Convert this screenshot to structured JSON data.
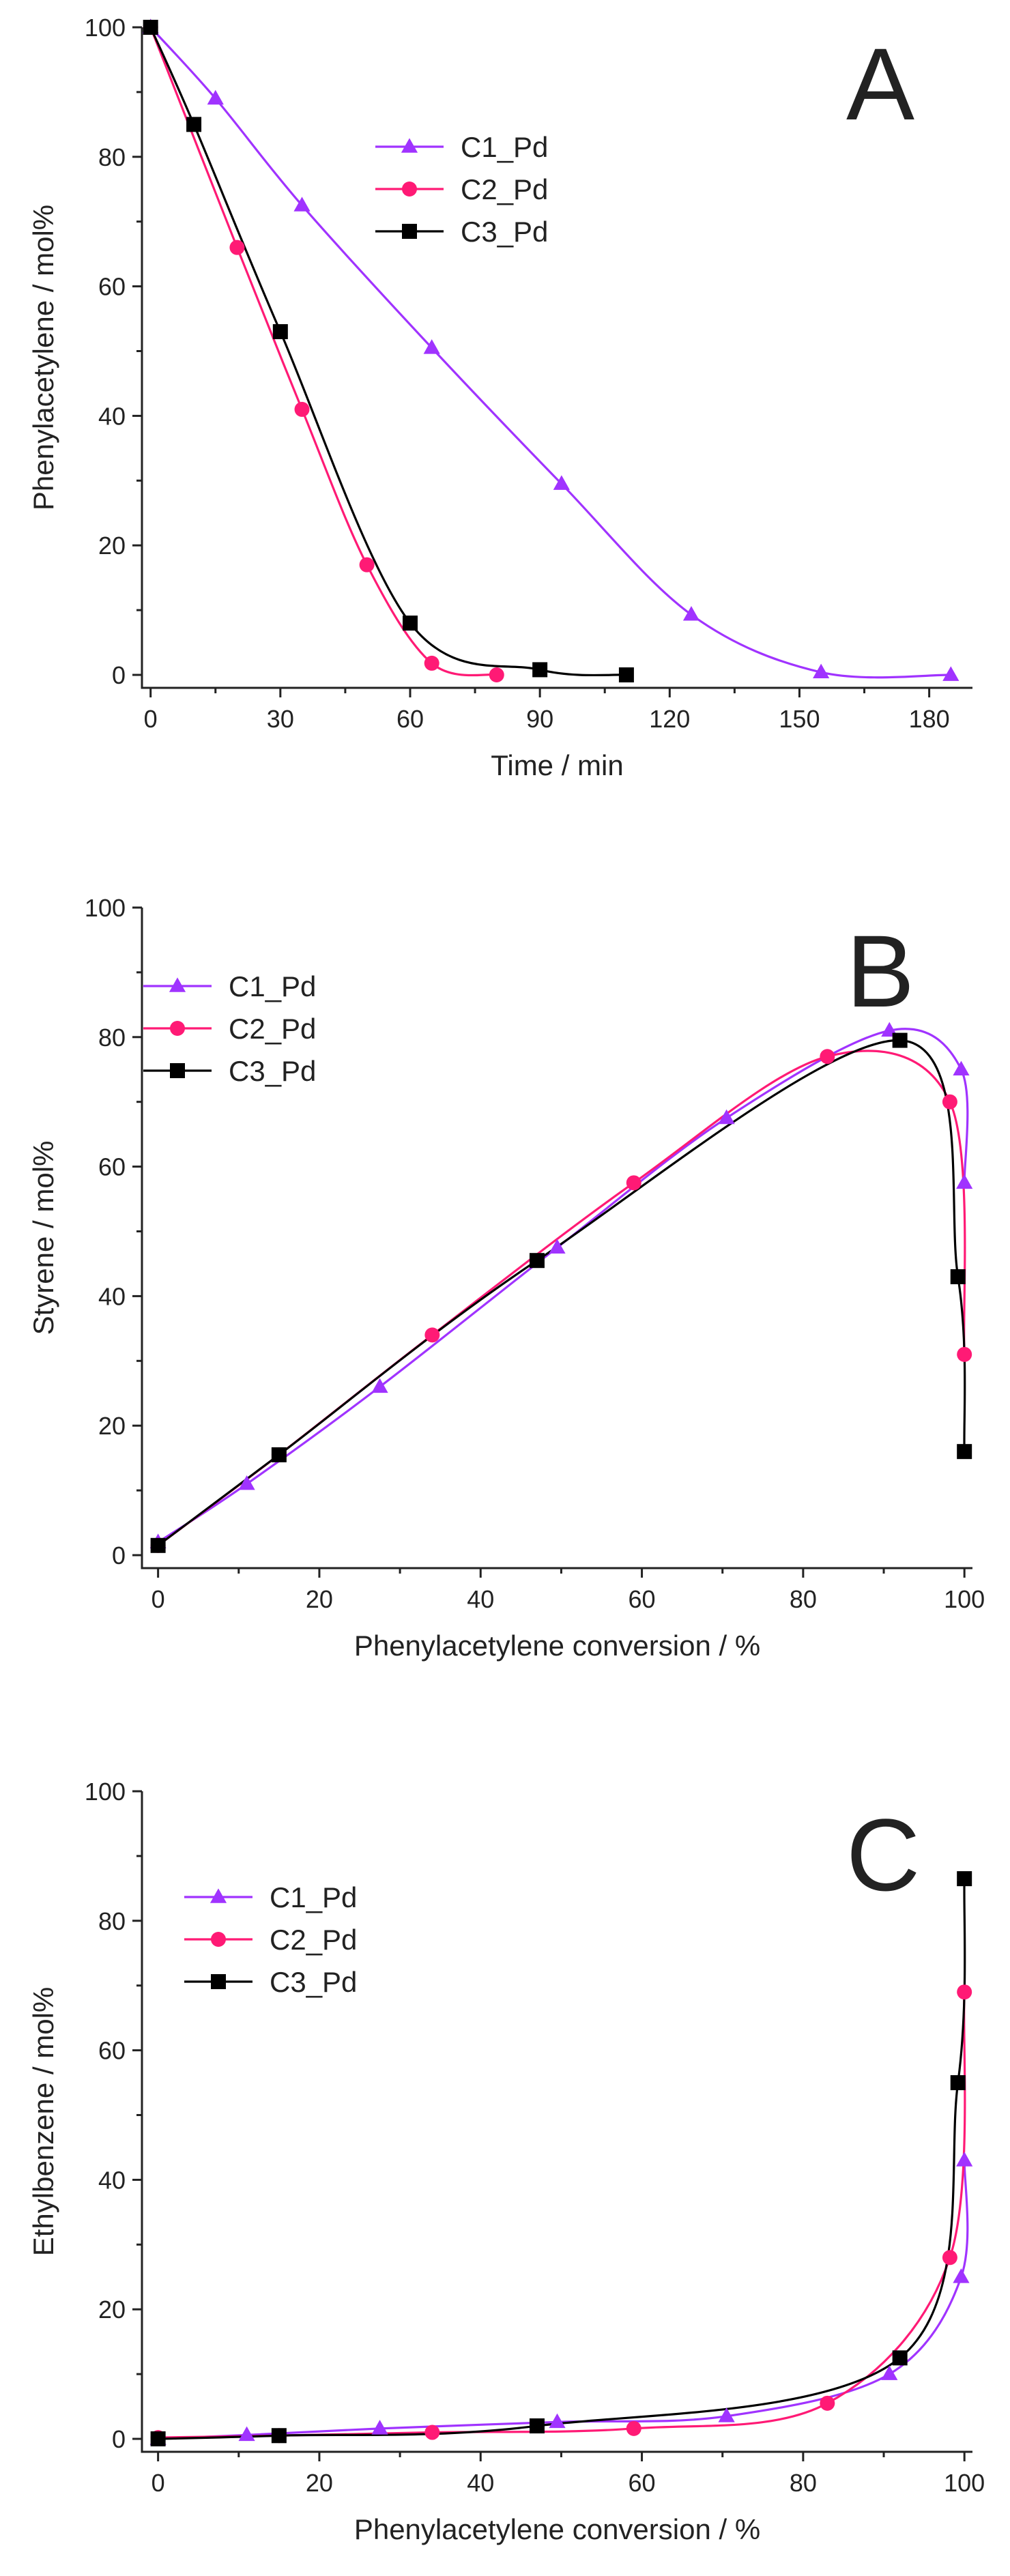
{
  "figure": {
    "panels": [
      "A",
      "B",
      "C"
    ]
  },
  "chart_data": [
    {
      "panel": "A",
      "type": "line",
      "xlabel": "Time / min",
      "ylabel": "Phenylacetylene / mol%",
      "xlim": [
        -2,
        190
      ],
      "ylim": [
        -2,
        100
      ],
      "xticks": [
        0,
        30,
        60,
        90,
        120,
        150,
        180
      ],
      "yticks": [
        0,
        20,
        40,
        60,
        80,
        100
      ],
      "legend_position": "upper-middle",
      "series": [
        {
          "name": "C1_Pd",
          "color": "#a033ff",
          "marker": "triangle",
          "x": [
            0,
            15,
            35,
            65,
            95,
            125,
            155,
            185
          ],
          "y": [
            100,
            89,
            72.5,
            50.5,
            29.5,
            9.3,
            0.4,
            0
          ]
        },
        {
          "name": "C2_Pd",
          "color": "#ff1a75",
          "marker": "circle",
          "x": [
            0,
            20,
            35,
            50,
            65,
            80
          ],
          "y": [
            100,
            66,
            41,
            17,
            1.8,
            0
          ]
        },
        {
          "name": "C3_Pd",
          "color": "#000000",
          "marker": "square",
          "x": [
            0,
            10,
            30,
            60,
            90,
            110
          ],
          "y": [
            100,
            85,
            53,
            8,
            0.8,
            0
          ]
        }
      ]
    },
    {
      "panel": "B",
      "type": "line",
      "xlabel": "Phenylacetylene conversion / %",
      "ylabel": "Styrene / mol%",
      "xlim": [
        -2,
        101
      ],
      "ylim": [
        -2,
        100
      ],
      "xticks": [
        0,
        20,
        40,
        60,
        80,
        100
      ],
      "yticks": [
        0,
        20,
        40,
        60,
        80,
        100
      ],
      "legend_position": "upper-left",
      "series": [
        {
          "name": "C1_Pd",
          "color": "#a033ff",
          "marker": "triangle",
          "x": [
            0,
            11,
            27.5,
            49.5,
            70.5,
            90.7,
            99.6,
            100
          ],
          "y": [
            2,
            11,
            26,
            47.5,
            67.5,
            81,
            75,
            57.5
          ]
        },
        {
          "name": "C2_Pd",
          "color": "#ff1a75",
          "marker": "circle",
          "x": [
            0,
            15,
            34,
            59,
            83,
            98.2,
            100
          ],
          "y": [
            1.5,
            15.5,
            34,
            57.5,
            77,
            70,
            31
          ]
        },
        {
          "name": "C3_Pd",
          "color": "#000000",
          "marker": "square",
          "x": [
            0,
            15,
            47,
            92,
            99.2,
            100
          ],
          "y": [
            1.5,
            15.5,
            45.5,
            79.5,
            43,
            16
          ]
        }
      ]
    },
    {
      "panel": "C",
      "type": "line",
      "xlabel": "Phenylacetylene conversion / %",
      "ylabel": "Ethylbenzene / mol%",
      "xlim": [
        -2,
        101
      ],
      "ylim": [
        -2,
        100
      ],
      "xticks": [
        0,
        20,
        40,
        60,
        80,
        100
      ],
      "yticks": [
        0,
        20,
        40,
        60,
        80,
        100
      ],
      "legend_position": "upper-left",
      "series": [
        {
          "name": "C1_Pd",
          "color": "#a033ff",
          "marker": "triangle",
          "x": [
            0,
            11,
            27.5,
            49.5,
            70.5,
            90.7,
            99.6,
            100
          ],
          "y": [
            0,
            0.6,
            1.6,
            2.6,
            3.5,
            10,
            25,
            43
          ]
        },
        {
          "name": "C2_Pd",
          "color": "#ff1a75",
          "marker": "circle",
          "x": [
            0,
            15,
            34,
            59,
            83,
            98.2,
            100
          ],
          "y": [
            0.2,
            0.5,
            1,
            1.6,
            5.5,
            28,
            69
          ]
        },
        {
          "name": "C3_Pd",
          "color": "#000000",
          "marker": "square",
          "x": [
            0,
            15,
            47,
            92,
            99.2,
            100
          ],
          "y": [
            0,
            0.5,
            2,
            12.5,
            55,
            86.5
          ]
        }
      ]
    }
  ]
}
